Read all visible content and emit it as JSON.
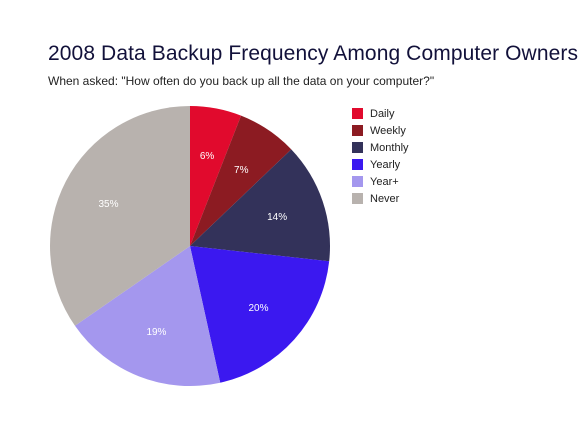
{
  "chart_data": {
    "type": "pie",
    "title": "2008 Data Backup Frequency Among Computer Owners",
    "subtitle": "When asked: \"How often do you back up all the data on your computer?\"",
    "slices": [
      {
        "label": "Daily",
        "value": 6,
        "display": "6%",
        "color": "#e10a2d"
      },
      {
        "label": "Weekly",
        "value": 7,
        "display": "7%",
        "color": "#8c1b22"
      },
      {
        "label": "Monthly",
        "value": 14,
        "display": "14%",
        "color": "#33325a"
      },
      {
        "label": "Yearly",
        "value": 20,
        "display": "20%",
        "color": "#3b18f0"
      },
      {
        "label": "Year+",
        "value": 19,
        "display": "19%",
        "color": "#a497ee"
      },
      {
        "label": "Never",
        "value": 35,
        "display": "35%",
        "color": "#b8b2ae"
      }
    ],
    "start_angle_deg": 0,
    "direction": "clockwise",
    "legend_position": "right"
  }
}
